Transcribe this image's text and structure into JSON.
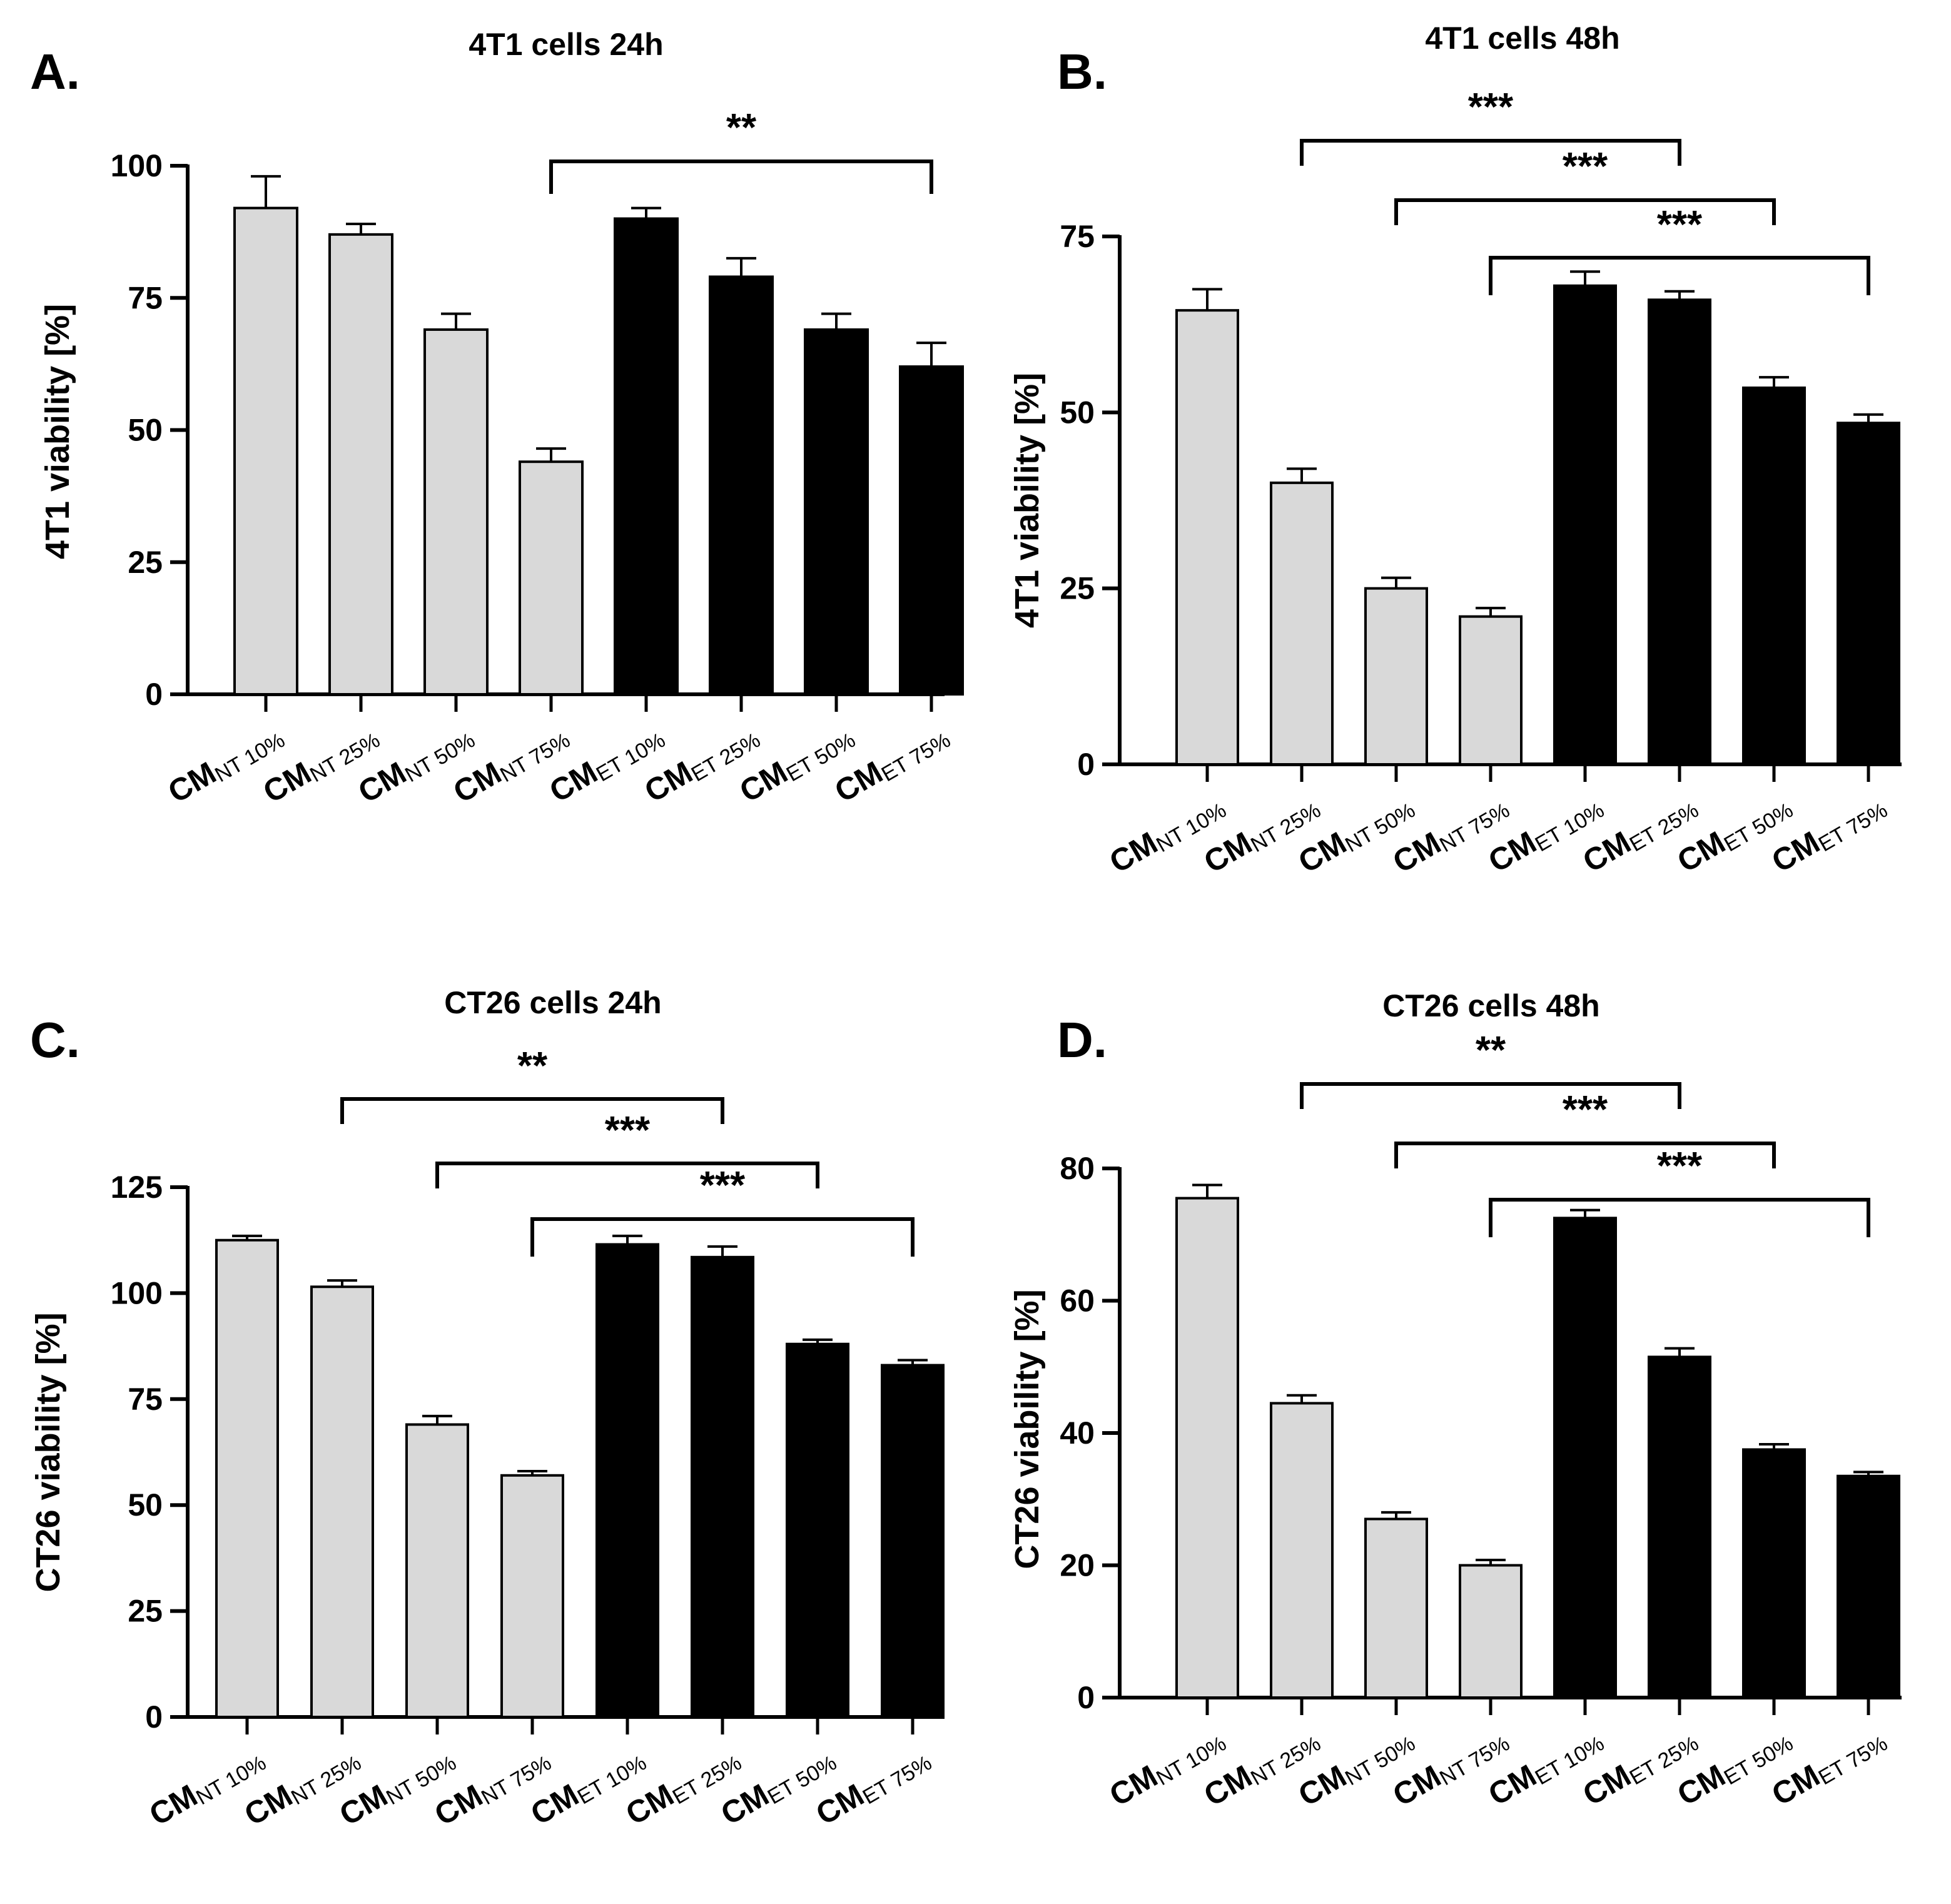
{
  "colors": {
    "nt_bar": "#d9d9d9",
    "et_bar": "#000000",
    "outline": "#000000"
  },
  "chart_data": [
    {
      "panel": "A.",
      "type": "bar",
      "title": "4T1 cells 24h",
      "ylabel": "4T1 viability [%]",
      "ylim": [
        0,
        100
      ],
      "yticks": [
        0,
        25,
        50,
        75,
        100
      ],
      "categories": [
        {
          "main": "CM",
          "sub": "NT 10%"
        },
        {
          "main": "CM",
          "sub": "NT 25%"
        },
        {
          "main": "CM",
          "sub": "NT 50%"
        },
        {
          "main": "CM",
          "sub": "NT 75%"
        },
        {
          "main": "CM",
          "sub": "ET 10%"
        },
        {
          "main": "CM",
          "sub": "ET 25%"
        },
        {
          "main": "CM",
          "sub": "ET 50%"
        },
        {
          "main": "CM",
          "sub": "ET 75%"
        }
      ],
      "values": [
        92,
        87,
        69,
        44,
        90,
        79,
        69,
        62
      ],
      "errors": [
        6,
        2,
        3,
        2.5,
        2,
        3.5,
        3,
        4.5
      ],
      "bar_colors": [
        "nt_bar",
        "nt_bar",
        "nt_bar",
        "nt_bar",
        "et_bar",
        "et_bar",
        "et_bar",
        "et_bar"
      ],
      "significance": [
        {
          "from": 3,
          "to": 7,
          "label": "**"
        }
      ]
    },
    {
      "panel": "B.",
      "type": "bar",
      "title": "4T1 cells 48h",
      "ylabel": "4T1 viability [%]",
      "ylim": [
        0,
        75
      ],
      "yticks": [
        0,
        25,
        50,
        75
      ],
      "categories": [
        {
          "main": "CM",
          "sub": "NT 10%"
        },
        {
          "main": "CM",
          "sub": "NT 25%"
        },
        {
          "main": "CM",
          "sub": "NT 50%"
        },
        {
          "main": "CM",
          "sub": "NT 75%"
        },
        {
          "main": "CM",
          "sub": "ET 10%"
        },
        {
          "main": "CM",
          "sub": "ET 25%"
        },
        {
          "main": "CM",
          "sub": "ET 50%"
        },
        {
          "main": "CM",
          "sub": "ET 75%"
        }
      ],
      "values": [
        64.5,
        40,
        25,
        21,
        68,
        66,
        53.5,
        48.5
      ],
      "errors": [
        3,
        2,
        1.5,
        1.2,
        2,
        1.2,
        1.5,
        1.2
      ],
      "bar_colors": [
        "nt_bar",
        "nt_bar",
        "nt_bar",
        "nt_bar",
        "et_bar",
        "et_bar",
        "et_bar",
        "et_bar"
      ],
      "significance": [
        {
          "from": 1,
          "to": 5,
          "label": "***"
        },
        {
          "from": 2,
          "to": 6,
          "label": "***"
        },
        {
          "from": 3,
          "to": 7,
          "label": "***"
        }
      ]
    },
    {
      "panel": "C.",
      "type": "bar",
      "title": "CT26 cells 24h",
      "ylabel": "CT26 viability [%]",
      "ylim": [
        0,
        125
      ],
      "yticks": [
        0,
        25,
        50,
        75,
        100,
        125
      ],
      "categories": [
        {
          "main": "CM",
          "sub": "NT 10%"
        },
        {
          "main": "CM",
          "sub": "NT 25%"
        },
        {
          "main": "CM",
          "sub": "NT 50%"
        },
        {
          "main": "CM",
          "sub": "NT 75%"
        },
        {
          "main": "CM",
          "sub": "ET 10%"
        },
        {
          "main": "CM",
          "sub": "ET 25%"
        },
        {
          "main": "CM",
          "sub": "ET 50%"
        },
        {
          "main": "CM",
          "sub": "ET 75%"
        }
      ],
      "values": [
        112.5,
        101.5,
        69,
        57,
        111.5,
        108.5,
        88,
        83
      ],
      "errors": [
        1,
        1.5,
        2,
        1,
        2,
        2.5,
        1,
        1.2
      ],
      "bar_colors": [
        "nt_bar",
        "nt_bar",
        "nt_bar",
        "nt_bar",
        "et_bar",
        "et_bar",
        "et_bar",
        "et_bar"
      ],
      "significance": [
        {
          "from": 1,
          "to": 5,
          "label": "**"
        },
        {
          "from": 2,
          "to": 6,
          "label": "***"
        },
        {
          "from": 3,
          "to": 7,
          "label": "***"
        }
      ]
    },
    {
      "panel": "D.",
      "type": "bar",
      "title": "CT26 cells 48h",
      "ylabel": "CT26 viability [%]",
      "ylim": [
        0,
        80
      ],
      "yticks": [
        0,
        20,
        40,
        60,
        80
      ],
      "categories": [
        {
          "main": "CM",
          "sub": "NT 10%"
        },
        {
          "main": "CM",
          "sub": "NT 25%"
        },
        {
          "main": "CM",
          "sub": "NT 50%"
        },
        {
          "main": "CM",
          "sub": "NT 75%"
        },
        {
          "main": "CM",
          "sub": "ET 10%"
        },
        {
          "main": "CM",
          "sub": "ET 25%"
        },
        {
          "main": "CM",
          "sub": "ET 50%"
        },
        {
          "main": "CM",
          "sub": "ET 75%"
        }
      ],
      "values": [
        75.5,
        44.5,
        27,
        20,
        72.5,
        51.5,
        37.5,
        33.5
      ],
      "errors": [
        2,
        1.2,
        1,
        0.8,
        1.2,
        1.3,
        0.8,
        0.6
      ],
      "bar_colors": [
        "nt_bar",
        "nt_bar",
        "nt_bar",
        "nt_bar",
        "et_bar",
        "et_bar",
        "et_bar",
        "et_bar"
      ],
      "significance": [
        {
          "from": 1,
          "to": 5,
          "label": "**"
        },
        {
          "from": 2,
          "to": 6,
          "label": "***"
        },
        {
          "from": 3,
          "to": 7,
          "label": "***"
        }
      ]
    }
  ]
}
